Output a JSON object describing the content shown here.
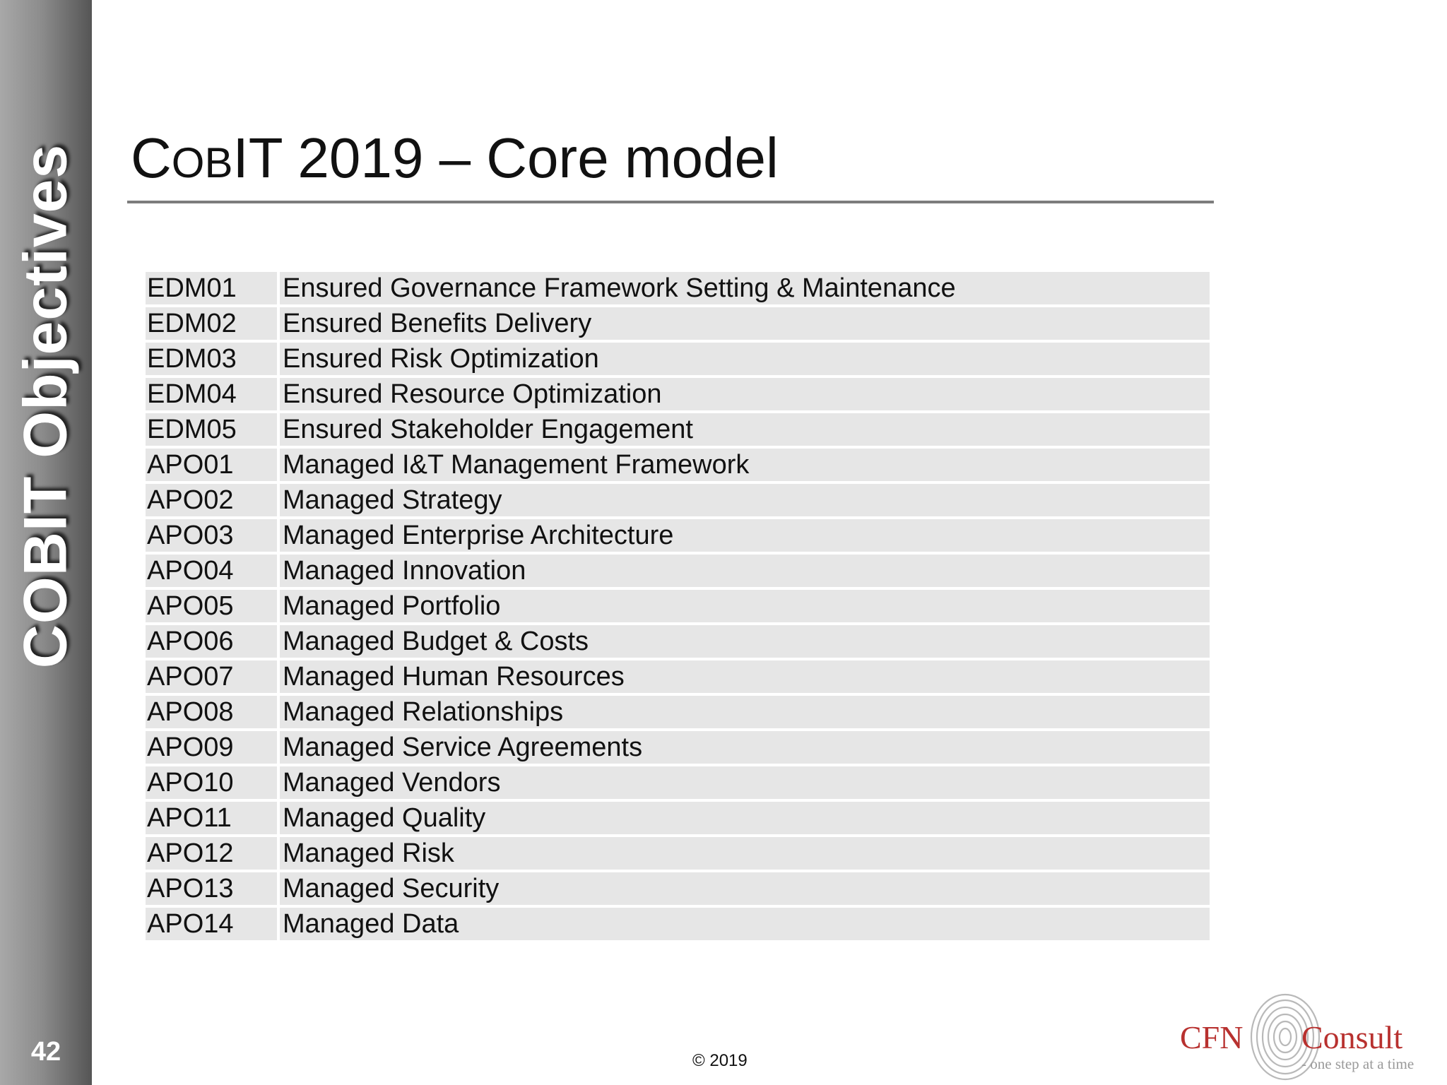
{
  "sidebar": {
    "title": "COBIT Objectives",
    "slide_number": "42"
  },
  "header": {
    "title_parts": [
      "C",
      "OB",
      "I",
      "T 2019 – Core model"
    ]
  },
  "objectives": [
    {
      "code": "EDM01",
      "name": "Ensured  Governance Framework Setting & Maintenance"
    },
    {
      "code": "EDM02",
      "name": "Ensured Benefits Delivery"
    },
    {
      "code": "EDM03",
      "name": "Ensured Risk Optimization"
    },
    {
      "code": "EDM04",
      "name": "Ensured Resource Optimization"
    },
    {
      "code": "EDM05",
      "name": "Ensured Stakeholder Engagement"
    },
    {
      "code": "APO01",
      "name": "Managed I&T Management Framework"
    },
    {
      "code": "APO02",
      "name": "Managed Strategy"
    },
    {
      "code": "APO03",
      "name": "Managed Enterprise Architecture"
    },
    {
      "code": "APO04",
      "name": "Managed Innovation"
    },
    {
      "code": "APO05",
      "name": "Managed Portfolio"
    },
    {
      "code": "APO06",
      "name": "Managed Budget & Costs"
    },
    {
      "code": "APO07",
      "name": "Managed Human Resources"
    },
    {
      "code": "APO08",
      "name": "Managed Relationships"
    },
    {
      "code": "APO09",
      "name": "Managed Service Agreements"
    },
    {
      "code": "APO10",
      "name": "Managed Vendors"
    },
    {
      "code": "APO11",
      "name": "Managed Quality"
    },
    {
      "code": "APO12",
      "name": "Managed Risk"
    },
    {
      "code": "APO13",
      "name": "Managed Security"
    },
    {
      "code": "APO14",
      "name": "Managed Data"
    }
  ],
  "footer": {
    "copyright": "© 2019",
    "logo_left": "CFN",
    "logo_right": "Consult",
    "logo_tagline": "- one step at a time",
    "logo_icon": "fingerprint-icon"
  },
  "colors": {
    "sidebar_dark": "#555555",
    "table_cell": "#e6e6e6",
    "logo_red": "#b8312f"
  }
}
